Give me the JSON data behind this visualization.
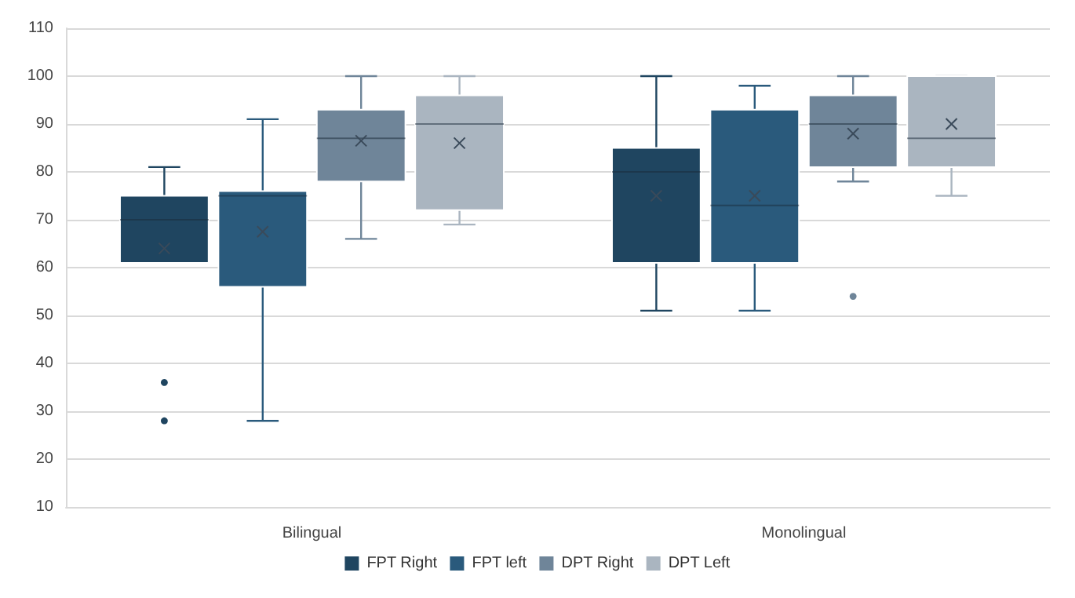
{
  "chart_data": {
    "type": "box",
    "categories": [
      "Bilingual",
      "Monolingual"
    ],
    "ylim": [
      10,
      110
    ],
    "yticks": [
      10,
      20,
      30,
      40,
      50,
      60,
      70,
      80,
      90,
      100,
      110
    ],
    "grid": "y",
    "legend": "bottom",
    "series": [
      {
        "name": "FPT Right",
        "color": "#1f4560",
        "boxes": [
          {
            "low": 61,
            "q1": 61,
            "median": 70,
            "q3": 75,
            "high": 81,
            "mean": 64,
            "outliers": [
              36,
              28
            ]
          },
          {
            "low": 51,
            "q1": 61,
            "median": 80,
            "q3": 85,
            "high": 100,
            "mean": 75
          }
        ]
      },
      {
        "name": "FPT left",
        "color": "#2a5a7c",
        "boxes": [
          {
            "low": 28,
            "q1": 56,
            "median": 75,
            "q3": 76,
            "high": 91,
            "mean": 67.5
          },
          {
            "low": 51,
            "q1": 61,
            "median": 73,
            "q3": 93,
            "high": 98,
            "mean": 75
          }
        ]
      },
      {
        "name": "DPT Right",
        "color": "#6f8599",
        "boxes": [
          {
            "low": 66,
            "q1": 78,
            "median": 87,
            "q3": 93,
            "high": 100,
            "mean": 86.5
          },
          {
            "low": 78,
            "q1": 81,
            "median": 90,
            "q3": 96,
            "high": 100,
            "mean": 88,
            "outliers": [
              54
            ]
          }
        ]
      },
      {
        "name": "DPT Left",
        "color": "#aab5c0",
        "boxes": [
          {
            "low": 69,
            "q1": 72,
            "median": 90,
            "q3": 96,
            "high": 100,
            "mean": 86
          },
          {
            "low": 75,
            "q1": 81,
            "median": 87,
            "q3": 100,
            "high": 100,
            "mean": 90
          }
        ]
      }
    ]
  }
}
